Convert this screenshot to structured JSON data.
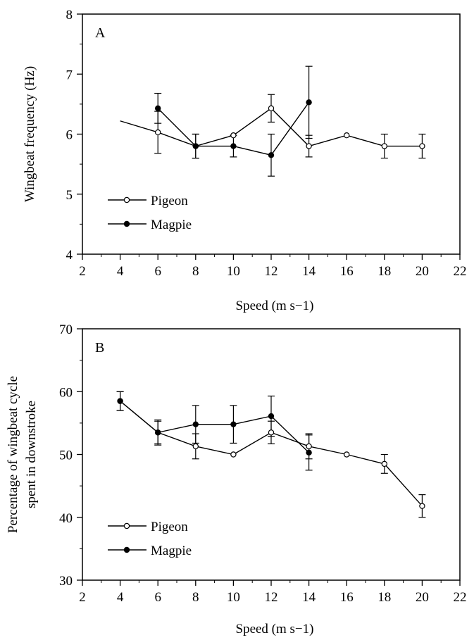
{
  "chart_data": [
    {
      "type": "line",
      "panel_label": "A",
      "xlabel": "Speed (m s−1)",
      "ylabel": "Wingbeat frequency (Hz)",
      "xlim": [
        2,
        22
      ],
      "ylim": [
        4,
        8
      ],
      "xticks": [
        2,
        4,
        6,
        8,
        10,
        12,
        14,
        16,
        18,
        20,
        22
      ],
      "yticks": [
        4,
        5,
        6,
        7,
        8
      ],
      "legend": {
        "position": "lower-left"
      },
      "series": [
        {
          "name": "Pigeon",
          "marker": "open-circle",
          "x": [
            6,
            8,
            10,
            12,
            14,
            16,
            18,
            20
          ],
          "y": [
            6.03,
            5.8,
            5.98,
            6.43,
            5.8,
            5.98,
            5.8,
            5.8
          ],
          "err": [
            0.35,
            0.2,
            0,
            0.23,
            0.18,
            0,
            0.2,
            0.2
          ],
          "line_start": {
            "x": 4,
            "y": 6.22
          }
        },
        {
          "name": "Magpie",
          "marker": "filled-circle",
          "x": [
            6,
            8,
            10,
            12,
            14
          ],
          "y": [
            6.43,
            5.8,
            5.8,
            5.65,
            6.53
          ],
          "err": [
            0.25,
            0.2,
            0.18,
            0.35,
            0.6
          ]
        }
      ]
    },
    {
      "type": "line",
      "panel_label": "B",
      "xlabel": "Speed (m s−1)",
      "ylabel": "Percentage of wingbeat cycle",
      "ylabel2": "spent in downstroke",
      "xlim": [
        2,
        22
      ],
      "ylim": [
        30,
        70
      ],
      "xticks": [
        2,
        4,
        6,
        8,
        10,
        12,
        14,
        16,
        18,
        20,
        22
      ],
      "yticks": [
        30,
        40,
        50,
        60,
        70
      ],
      "legend": {
        "position": "lower-left"
      },
      "series": [
        {
          "name": "Pigeon",
          "marker": "open-circle",
          "x": [
            4,
            6,
            8,
            10,
            12,
            14,
            16,
            18,
            20
          ],
          "y": [
            58.5,
            53.5,
            51.3,
            50,
            53.5,
            51.3,
            50,
            48.5,
            41.8
          ],
          "err": [
            1.5,
            2,
            2,
            0,
            1.8,
            2,
            0,
            1.5,
            1.8
          ]
        },
        {
          "name": "Magpie",
          "marker": "filled-circle",
          "x": [
            4,
            6,
            8,
            10,
            12,
            14
          ],
          "y": [
            58.5,
            53.5,
            54.8,
            54.8,
            56.1,
            50.3
          ],
          "err": [
            1.5,
            1.8,
            3,
            3,
            3.2,
            2.8
          ]
        }
      ]
    }
  ]
}
